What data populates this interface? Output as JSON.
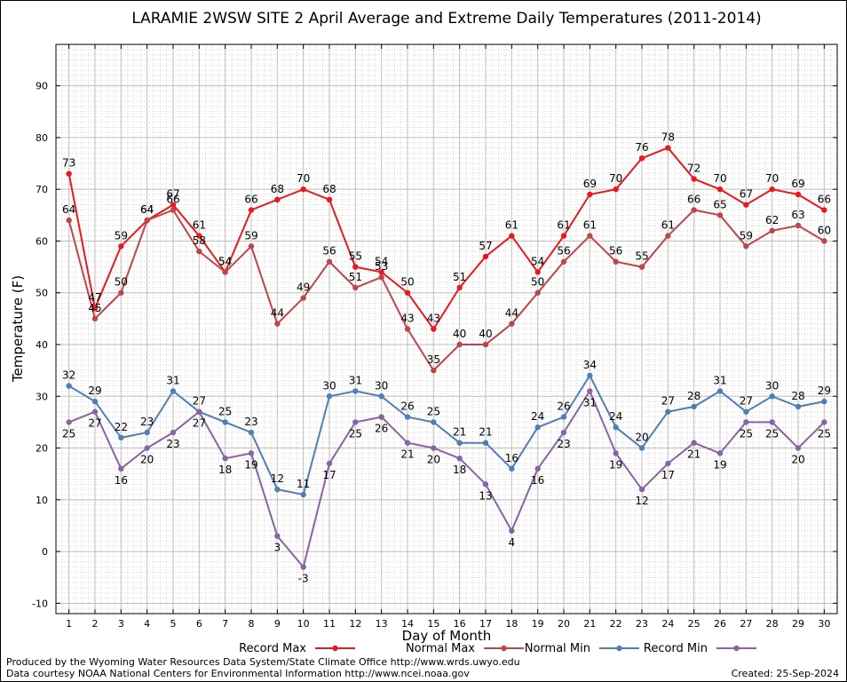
{
  "chart_data": {
    "type": "line",
    "title": "LARAMIE 2WSW SITE 2 April Average and Extreme Daily Temperatures (2011-2014)",
    "xlabel": "Day of Month",
    "ylabel": "Temperature (F)",
    "xlim": [
      0.5,
      30.5
    ],
    "ylim": [
      -12,
      98
    ],
    "yticks": [
      -10,
      0,
      10,
      20,
      30,
      40,
      50,
      60,
      70,
      80,
      90
    ],
    "categories": [
      "1",
      "2",
      "3",
      "4",
      "5",
      "6",
      "7",
      "8",
      "9",
      "10",
      "11",
      "12",
      "13",
      "14",
      "15",
      "16",
      "17",
      "18",
      "19",
      "20",
      "21",
      "22",
      "23",
      "24",
      "25",
      "26",
      "27",
      "28",
      "29",
      "30"
    ],
    "grid": true,
    "legend_position": "bottom",
    "series": [
      {
        "name": "Record Max",
        "color": "#e8191f",
        "label_pos": "above",
        "values": [
          73,
          47,
          59,
          64,
          67,
          61,
          54,
          66,
          68,
          70,
          68,
          55,
          54,
          50,
          43,
          51,
          57,
          61,
          54,
          61,
          69,
          70,
          76,
          78,
          72,
          70,
          67,
          70,
          69,
          66
        ]
      },
      {
        "name": "Normal Max",
        "color": "#c0454a",
        "label_pos": "above",
        "values": [
          64,
          45,
          50,
          64,
          66,
          58,
          54,
          59,
          44,
          49,
          56,
          51,
          53,
          43,
          35,
          40,
          40,
          44,
          50,
          56,
          61,
          56,
          55,
          61,
          66,
          65,
          59,
          62,
          63,
          60
        ]
      },
      {
        "name": "Normal Min",
        "color": "#4f7fb4",
        "label_pos": "above",
        "values": [
          32,
          29,
          22,
          23,
          31,
          27,
          25,
          23,
          12,
          11,
          30,
          31,
          30,
          26,
          25,
          21,
          21,
          16,
          24,
          26,
          34,
          24,
          20,
          27,
          28,
          31,
          27,
          30,
          28,
          29
        ]
      },
      {
        "name": "Record Min",
        "color": "#8a64a2",
        "label_pos": "below",
        "values": [
          25,
          27,
          16,
          20,
          23,
          27,
          18,
          19,
          3,
          -3,
          17,
          25,
          26,
          21,
          20,
          18,
          13,
          4,
          16,
          23,
          31,
          19,
          12,
          17,
          21,
          19,
          25,
          25,
          20,
          25
        ]
      }
    ]
  },
  "footer": {
    "produced_by": "Produced by the Wyoming Water Resources Data System/State Climate Office http://www.wrds.uwyo.edu",
    "data_courtesy": "Data courtesy NOAA National Centers for Environmental Information http://www.ncei.noaa.gov",
    "created": "Created:  25-Sep-2024"
  }
}
